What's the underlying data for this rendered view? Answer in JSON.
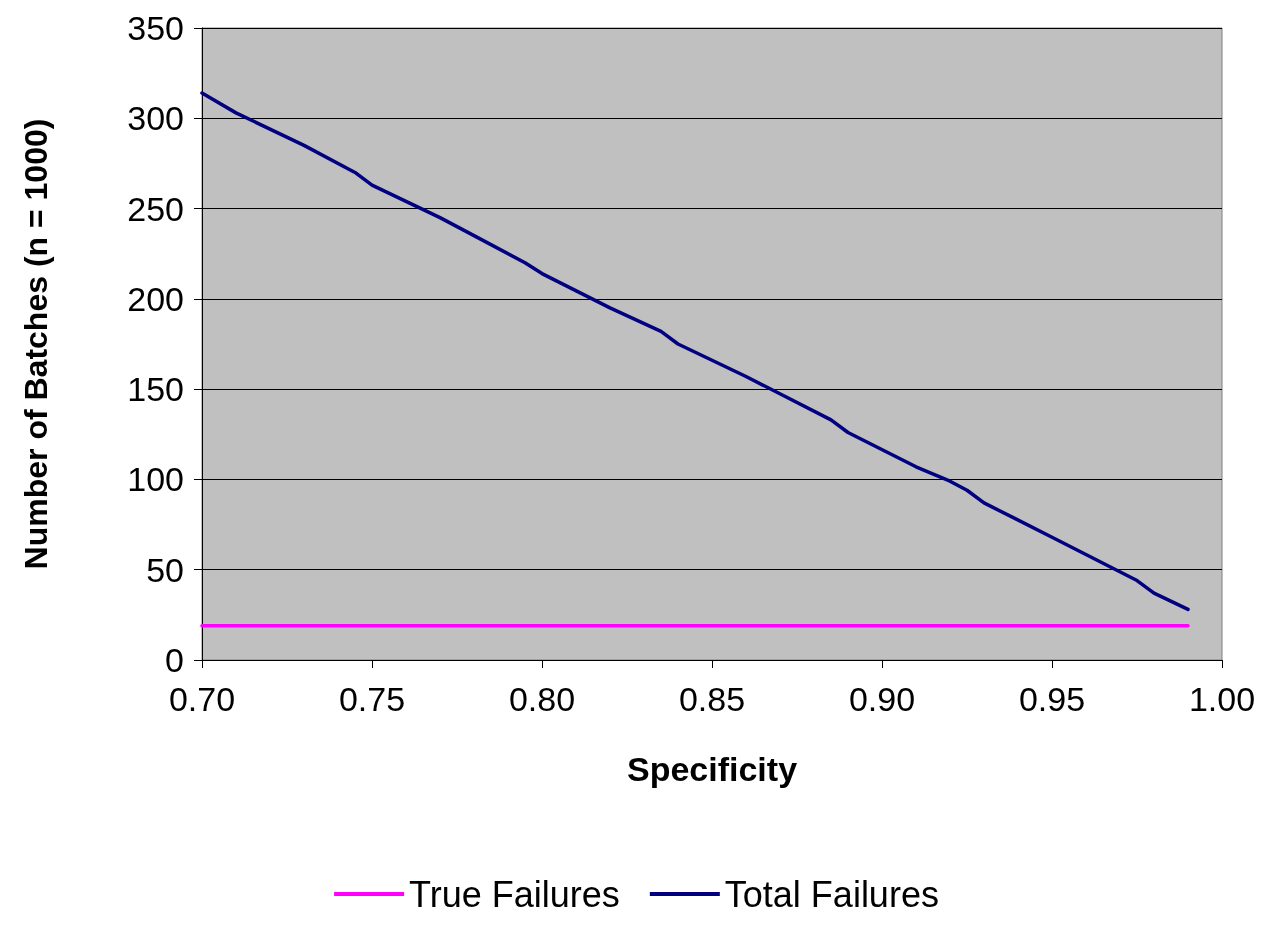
{
  "chart_data": {
    "type": "line",
    "xlabel": "Specificity",
    "ylabel": "Number of Batches (n = 1000)",
    "xlim": [
      0.7,
      1.0
    ],
    "xticks": [
      {
        "value": 0.7,
        "label": "0.70"
      },
      {
        "value": 0.75,
        "label": "0.75"
      },
      {
        "value": 0.8,
        "label": "0.80"
      },
      {
        "value": 0.85,
        "label": "0.85"
      },
      {
        "value": 0.9,
        "label": "0.90"
      },
      {
        "value": 0.95,
        "label": "0.95"
      },
      {
        "value": 1.0,
        "label": "1.00"
      }
    ],
    "ylim": [
      0,
      350
    ],
    "yticks": [
      0,
      50,
      100,
      150,
      200,
      250,
      300,
      350
    ],
    "series": [
      {
        "name": "True Failures",
        "color": "#ff00ff",
        "x": [
          0.7,
          0.99
        ],
        "values": [
          19,
          19
        ]
      },
      {
        "name": "Total Failures",
        "color": "#000080",
        "x": [
          0.7,
          0.71,
          0.73,
          0.745,
          0.75,
          0.77,
          0.78,
          0.795,
          0.8,
          0.82,
          0.835,
          0.84,
          0.86,
          0.885,
          0.89,
          0.91,
          0.92,
          0.925,
          0.93,
          0.95,
          0.975,
          0.98,
          0.99
        ],
        "values": [
          314,
          303,
          285,
          270,
          263,
          245,
          235,
          220,
          214,
          195,
          182,
          175,
          157,
          133,
          126,
          107,
          99,
          94,
          87,
          68,
          44,
          37,
          28
        ]
      }
    ],
    "grid": "y",
    "legend": "bottom",
    "marker": "none",
    "line_style": "solid"
  }
}
